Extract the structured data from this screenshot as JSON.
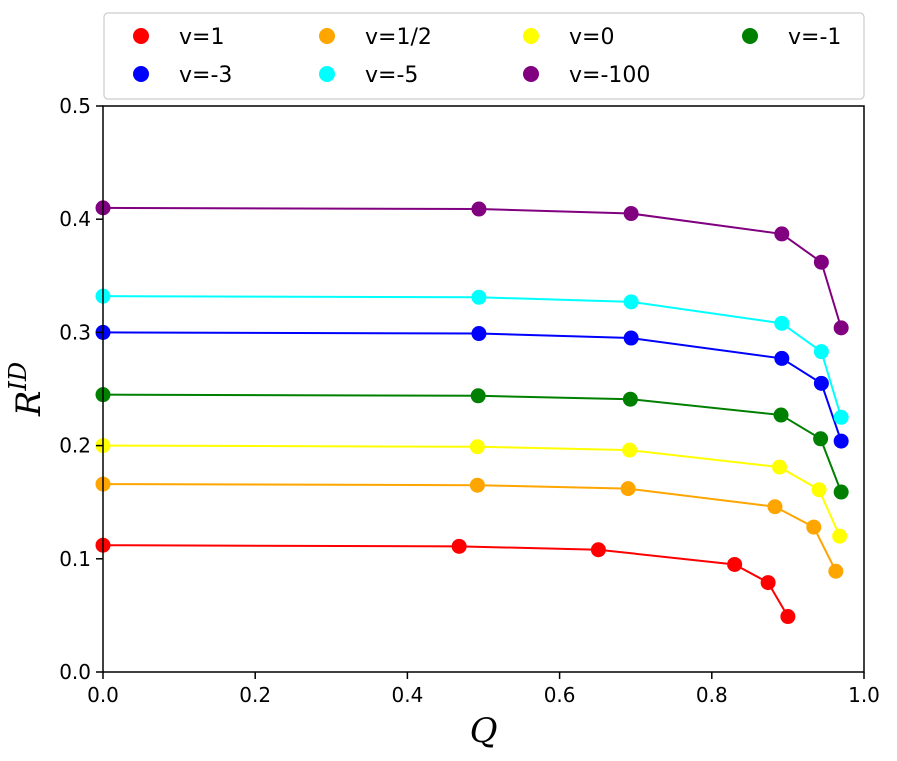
{
  "chart_data": {
    "type": "line",
    "xlabel": "Q",
    "ylabel": "R",
    "ylabel_superscript": "ID",
    "xlim": [
      0.0,
      1.0
    ],
    "ylim": [
      0.0,
      0.5
    ],
    "xticks": [
      "0.0",
      "0.2",
      "0.4",
      "0.6",
      "0.8",
      "1.0"
    ],
    "yticks": [
      "0.0",
      "0.1",
      "0.2",
      "0.3",
      "0.4",
      "0.5"
    ],
    "grid": false,
    "legend_position": "top",
    "series": [
      {
        "name": "v=1",
        "color": "#ff0000",
        "x": [
          0.0,
          0.468,
          0.651,
          0.83,
          0.874,
          0.9
        ],
        "y": [
          0.112,
          0.111,
          0.108,
          0.095,
          0.079,
          0.049
        ]
      },
      {
        "name": "v=1/2",
        "color": "#ffa500",
        "x": [
          0.0,
          0.492,
          0.69,
          0.883,
          0.934,
          0.963
        ],
        "y": [
          0.166,
          0.165,
          0.162,
          0.146,
          0.128,
          0.089
        ]
      },
      {
        "name": "v=0",
        "color": "#ffff00",
        "x": [
          0.0,
          0.492,
          0.692,
          0.889,
          0.941,
          0.968
        ],
        "y": [
          0.2,
          0.199,
          0.196,
          0.181,
          0.161,
          0.12
        ]
      },
      {
        "name": "v=-1",
        "color": "#008000",
        "x": [
          0.0,
          0.493,
          0.693,
          0.891,
          0.943,
          0.97
        ],
        "y": [
          0.245,
          0.244,
          0.241,
          0.227,
          0.206,
          0.159
        ]
      },
      {
        "name": "v=-3",
        "color": "#0000ff",
        "x": [
          0.0,
          0.494,
          0.694,
          0.892,
          0.944,
          0.97
        ],
        "y": [
          0.3,
          0.299,
          0.295,
          0.277,
          0.255,
          0.204
        ]
      },
      {
        "name": "v=-5",
        "color": "#00ffff",
        "x": [
          0.0,
          0.494,
          0.694,
          0.892,
          0.944,
          0.97
        ],
        "y": [
          0.332,
          0.331,
          0.327,
          0.308,
          0.283,
          0.225
        ]
      },
      {
        "name": "v=-100",
        "color": "#800080",
        "x": [
          0.0,
          0.494,
          0.694,
          0.892,
          0.944,
          0.97
        ],
        "y": [
          0.41,
          0.409,
          0.405,
          0.387,
          0.362,
          0.304
        ]
      }
    ],
    "legend_order": [
      "v=1",
      "v=1/2",
      "v=0",
      "v=-1",
      "v=-3",
      "v=-5",
      "v=-100"
    ]
  }
}
